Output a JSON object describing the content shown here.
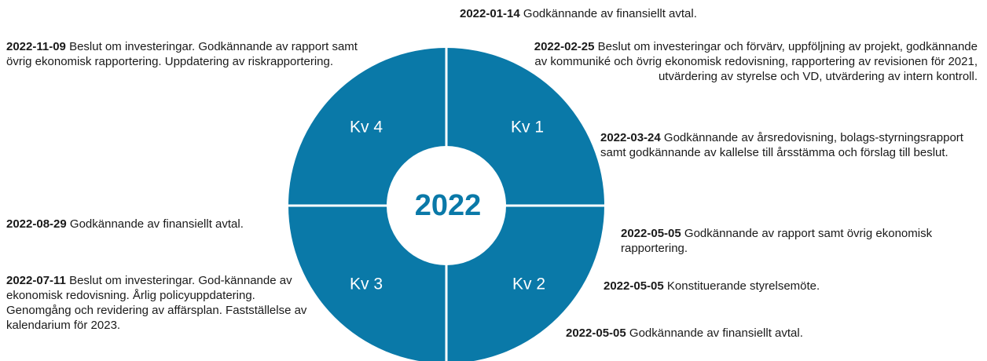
{
  "year": "2022",
  "quarters": [
    "Kv 1",
    "Kv 2",
    "Kv 3",
    "Kv 4"
  ],
  "events": [
    {
      "date": "2022-01-14",
      "text": "Godkännande av finansiellt avtal."
    },
    {
      "date": "2022-02-25",
      "text": "Beslut om investeringar och förvärv, uppföljning av projekt, godkännande av kommuniké och övrig ekonomisk redovisning, rapportering av revisionen för 2021, utvärdering av styrelse och VD, utvärdering av intern kontroll."
    },
    {
      "date": "2022-03-24",
      "text": "Godkännande av årsredovisning, bolags-styrningsrapport samt godkännande av kallelse till årsstämma och förslag till beslut."
    },
    {
      "date": "2022-05-05",
      "text": "Godkännande av rapport samt övrig ekonomisk rapportering."
    },
    {
      "date": "2022-05-05",
      "text": "Konstituerande styrelsemöte."
    },
    {
      "date": "2022-05-05",
      "text": "Godkännande av finansiellt avtal."
    },
    {
      "date": "2022-07-11",
      "text": "Beslut om investeringar. God-kännande av ekonomisk redovisning. Årlig policyuppdatering. Genomgång och revidering av affärsplan. Fastställelse av kalendarium för 2023."
    },
    {
      "date": "2022-08-29",
      "text": "Godkännande av finansiellt avtal."
    },
    {
      "date": "2022-11-09",
      "text": "Beslut om investeringar. Godkännande av rapport samt övrig ekonomisk rapportering. Uppdatering av riskrapportering."
    }
  ]
}
